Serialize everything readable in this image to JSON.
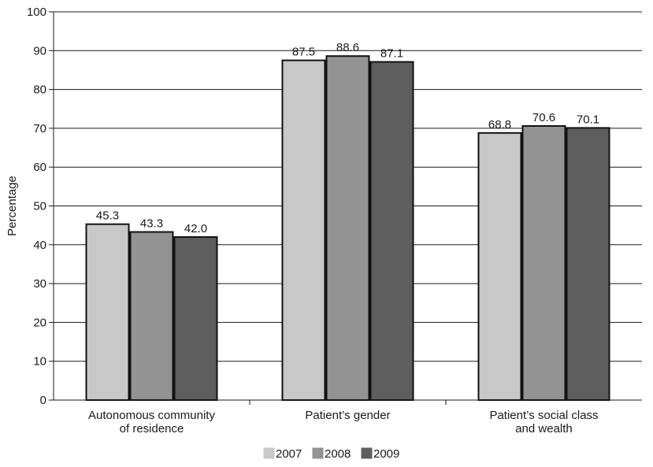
{
  "chart_data": {
    "type": "bar",
    "title": "",
    "xlabel": "",
    "ylabel": "Percentage",
    "ylim": [
      0,
      100
    ],
    "yticks": [
      0,
      10,
      20,
      30,
      40,
      50,
      60,
      70,
      80,
      90,
      100
    ],
    "grid": true,
    "legend_position": "bottom",
    "categories": [
      [
        "Autonomous community",
        "of residence"
      ],
      [
        "Patient’s gender"
      ],
      [
        "Patient’s social class",
        "and wealth"
      ]
    ],
    "series": [
      {
        "name": "2007",
        "color": "#c8c8c8",
        "values": [
          45.3,
          87.5,
          68.8
        ]
      },
      {
        "name": "2008",
        "color": "#939393",
        "values": [
          43.3,
          88.6,
          70.6
        ]
      },
      {
        "name": "2009",
        "color": "#5e5e5e",
        "values": [
          42.0,
          87.1,
          70.1
        ]
      }
    ]
  }
}
